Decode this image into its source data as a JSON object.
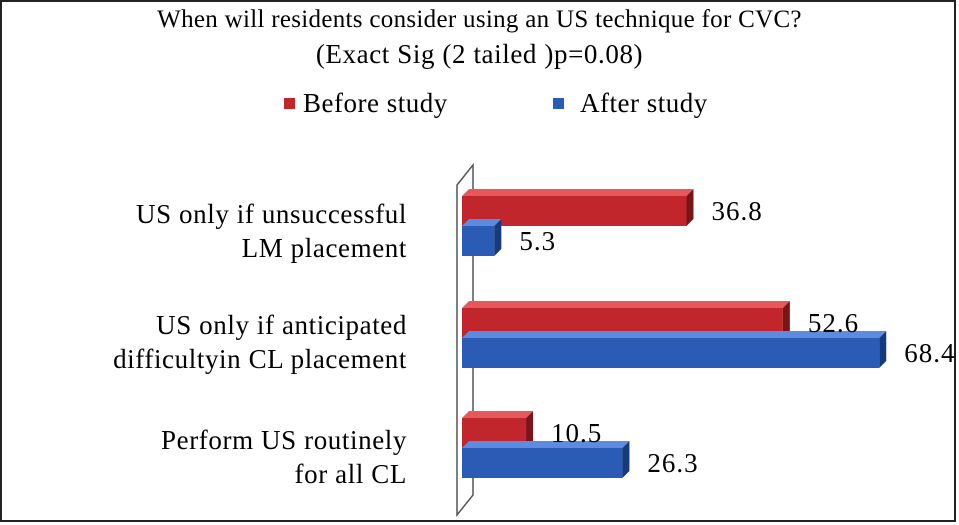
{
  "colors": {
    "before_front": "#c0262b",
    "before_top": "#e7585c",
    "before_side": "#7a1418",
    "after_front": "#2a5cb5",
    "after_top": "#5c8be0",
    "after_side": "#173a7c"
  },
  "chart_data": {
    "type": "bar",
    "orientation": "horizontal",
    "title": "When will residents consider using an US technique for CVC?",
    "subtitle": "(Exact Sig (2 tailed )p=0.08)",
    "categories": [
      [
        "US only if unsuccessful",
        "LM placement"
      ],
      [
        "US only if anticipated",
        "difficultyin CL placement"
      ],
      [
        "Perform US routinely",
        "for all CL"
      ]
    ],
    "series": [
      {
        "name": "Before study",
        "values": [
          36.8,
          52.6,
          10.5
        ],
        "labels": [
          "36.8",
          "52.6",
          "10.5"
        ]
      },
      {
        "name": "After study",
        "values": [
          5.3,
          68.4,
          26.3
        ],
        "labels": [
          "5.3",
          "68.4",
          "26.3"
        ]
      }
    ],
    "xlim": [
      0,
      70
    ],
    "grid": false,
    "legend_position": "top",
    "style": "3d"
  }
}
